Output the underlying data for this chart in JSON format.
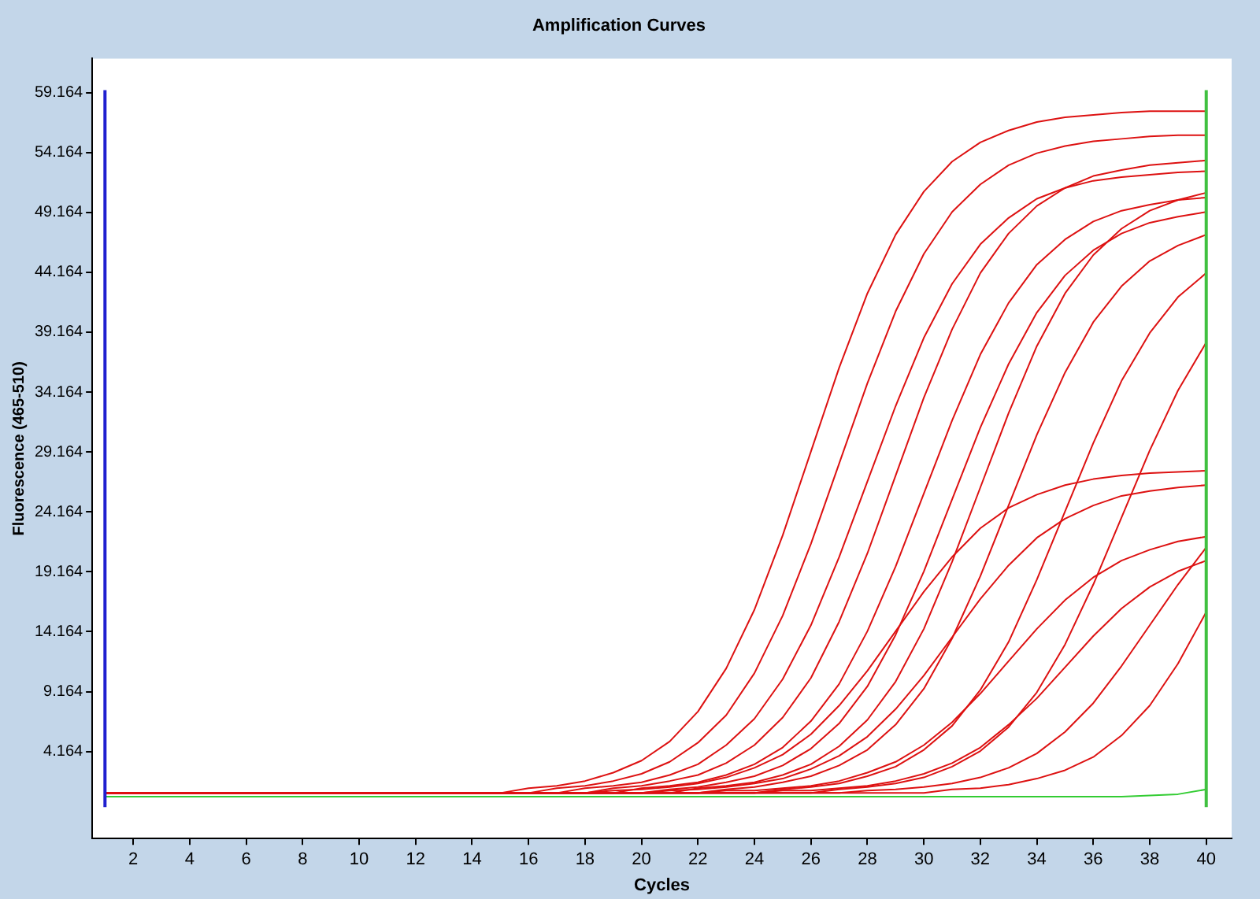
{
  "chart_data": {
    "type": "line",
    "title": "Amplification Curves",
    "xlabel": "Cycles",
    "ylabel": "Fluorescence (465-510)",
    "marker": "none",
    "x": [
      1,
      2,
      3,
      4,
      5,
      6,
      7,
      8,
      9,
      10,
      11,
      12,
      13,
      14,
      15,
      16,
      17,
      18,
      19,
      20,
      21,
      22,
      23,
      24,
      25,
      26,
      27,
      28,
      29,
      30,
      31,
      32,
      33,
      34,
      35,
      36,
      37,
      38,
      39,
      40
    ],
    "xlim": [
      0.55,
      40.9
    ],
    "xticks": [
      2,
      4,
      6,
      8,
      10,
      12,
      14,
      16,
      18,
      20,
      22,
      24,
      26,
      28,
      30,
      32,
      34,
      36,
      38,
      40
    ],
    "ylim": [
      -3.1,
      62
    ],
    "yticks": [
      4.164,
      9.164,
      14.164,
      19.164,
      24.164,
      29.164,
      34.164,
      39.164,
      44.164,
      49.164,
      54.164,
      59.164
    ],
    "ref_lines": [
      {
        "axis": "x",
        "value": 1,
        "color": "#2020d0"
      },
      {
        "axis": "x",
        "value": 40,
        "color": "#40c040"
      }
    ],
    "series": [
      {
        "color": "#dd1111",
        "values": [
          0.7,
          0.7,
          0.7,
          0.7,
          0.7,
          0.7,
          0.7,
          0.7,
          0.7,
          0.7,
          0.7,
          0.7,
          0.7,
          0.7,
          0.7,
          1.1,
          1.3,
          1.7,
          2.4,
          3.4,
          5.0,
          7.5,
          11.1,
          16.0,
          22.2,
          29.2,
          36.2,
          42.4,
          47.3,
          50.9,
          53.4,
          55.0,
          56.0,
          56.7,
          57.1,
          57.3,
          57.5,
          57.6,
          57.6,
          57.6
        ]
      },
      {
        "color": "#dd1111",
        "values": [
          0.7,
          0.7,
          0.7,
          0.7,
          0.7,
          0.7,
          0.7,
          0.7,
          0.7,
          0.7,
          0.7,
          0.7,
          0.7,
          0.7,
          0.7,
          0.7,
          1.1,
          1.3,
          1.7,
          2.3,
          3.3,
          4.9,
          7.2,
          10.7,
          15.5,
          21.5,
          28.2,
          34.9,
          40.9,
          45.7,
          49.2,
          51.5,
          53.1,
          54.1,
          54.7,
          55.1,
          55.3,
          55.5,
          55.6,
          55.6
        ]
      },
      {
        "color": "#dd1111",
        "values": [
          0.7,
          0.7,
          0.7,
          0.7,
          0.7,
          0.7,
          0.7,
          0.7,
          0.7,
          0.7,
          0.7,
          0.7,
          0.7,
          0.7,
          0.7,
          0.7,
          0.7,
          1.1,
          1.3,
          1.6,
          2.2,
          3.1,
          4.7,
          6.9,
          10.2,
          14.7,
          20.4,
          26.7,
          33.0,
          38.7,
          43.2,
          46.5,
          48.7,
          50.3,
          51.2,
          51.8,
          52.1,
          52.3,
          52.5,
          52.6
        ]
      },
      {
        "color": "#dd1111",
        "values": [
          0.7,
          0.7,
          0.7,
          0.7,
          0.7,
          0.7,
          0.7,
          0.7,
          0.7,
          0.7,
          0.7,
          0.7,
          0.7,
          0.7,
          0.7,
          0.7,
          0.7,
          0.7,
          1.1,
          1.3,
          1.7,
          2.2,
          3.2,
          4.7,
          7.0,
          10.3,
          15.0,
          20.7,
          27.2,
          33.7,
          39.4,
          44.1,
          47.4,
          49.7,
          51.2,
          52.2,
          52.7,
          53.1,
          53.3,
          53.5
        ]
      },
      {
        "color": "#dd1111",
        "values": [
          0.7,
          0.7,
          0.7,
          0.7,
          0.7,
          0.7,
          0.7,
          0.7,
          0.7,
          0.7,
          0.7,
          0.7,
          0.7,
          0.7,
          0.7,
          0.7,
          0.7,
          0.7,
          0.7,
          1.1,
          1.3,
          1.6,
          2.2,
          3.1,
          4.5,
          6.7,
          9.8,
          14.2,
          19.6,
          25.7,
          31.8,
          37.3,
          41.6,
          44.8,
          46.9,
          48.4,
          49.3,
          49.8,
          50.2,
          50.4
        ]
      },
      {
        "color": "#dd1111",
        "values": [
          0.7,
          0.7,
          0.7,
          0.7,
          0.7,
          0.7,
          0.7,
          0.7,
          0.7,
          0.7,
          0.7,
          0.7,
          0.7,
          0.7,
          0.7,
          0.7,
          0.7,
          0.7,
          0.7,
          0.7,
          1.0,
          1.2,
          1.6,
          2.1,
          3.0,
          4.4,
          6.5,
          9.6,
          13.9,
          19.2,
          25.2,
          31.2,
          36.5,
          40.8,
          43.9,
          46.0,
          47.4,
          48.3,
          48.8,
          49.2
        ]
      },
      {
        "color": "#dd1111",
        "values": [
          0.7,
          0.7,
          0.7,
          0.7,
          0.7,
          0.7,
          0.7,
          0.7,
          0.7,
          0.7,
          0.7,
          0.7,
          0.7,
          0.7,
          0.7,
          0.7,
          0.7,
          0.7,
          0.7,
          0.7,
          0.7,
          1.1,
          1.3,
          1.6,
          2.2,
          3.1,
          4.6,
          6.8,
          10.0,
          14.4,
          20.0,
          26.2,
          32.4,
          38.0,
          42.4,
          45.6,
          47.8,
          49.3,
          50.2,
          50.8
        ]
      },
      {
        "color": "#dd1111",
        "values": [
          0.7,
          0.7,
          0.7,
          0.7,
          0.7,
          0.7,
          0.7,
          0.7,
          0.7,
          0.7,
          0.7,
          0.7,
          0.7,
          0.7,
          0.7,
          0.7,
          0.7,
          0.7,
          0.7,
          0.7,
          0.7,
          0.7,
          1.0,
          1.2,
          1.6,
          2.1,
          3.0,
          4.3,
          6.4,
          9.4,
          13.6,
          18.8,
          24.7,
          30.6,
          35.8,
          40.0,
          43.0,
          45.1,
          46.4,
          47.3
        ]
      },
      {
        "color": "#dd1111",
        "values": [
          0.7,
          0.7,
          0.7,
          0.7,
          0.7,
          0.7,
          0.7,
          0.7,
          0.7,
          0.7,
          0.7,
          0.7,
          0.7,
          0.7,
          0.7,
          0.7,
          0.7,
          0.7,
          0.7,
          0.7,
          0.7,
          0.7,
          0.7,
          0.7,
          1.0,
          1.2,
          1.5,
          2.1,
          2.9,
          4.3,
          6.3,
          9.3,
          13.3,
          18.5,
          24.2,
          29.9,
          35.1,
          39.1,
          42.1,
          44.1
        ]
      },
      {
        "color": "#dd1111",
        "values": [
          0.7,
          0.7,
          0.7,
          0.7,
          0.7,
          0.7,
          0.7,
          0.7,
          0.7,
          0.7,
          0.7,
          0.7,
          0.7,
          0.7,
          0.7,
          0.7,
          0.7,
          0.7,
          0.7,
          0.7,
          0.7,
          0.7,
          0.7,
          0.7,
          0.7,
          0.7,
          1.0,
          1.2,
          1.5,
          2.0,
          2.9,
          4.2,
          6.2,
          9.1,
          13.1,
          18.1,
          23.7,
          29.3,
          34.3,
          38.3
        ]
      },
      {
        "color": "#dd1111",
        "values": [
          0.7,
          0.7,
          0.7,
          0.7,
          0.7,
          0.7,
          0.7,
          0.7,
          0.7,
          0.7,
          0.7,
          0.7,
          0.7,
          0.7,
          0.7,
          0.7,
          0.7,
          0.7,
          0.9,
          1.0,
          1.2,
          1.5,
          2.0,
          2.8,
          3.9,
          5.6,
          8.0,
          10.9,
          14.2,
          17.5,
          20.4,
          22.8,
          24.5,
          25.6,
          26.4,
          26.9,
          27.2,
          27.4,
          27.5,
          27.6
        ]
      },
      {
        "color": "#dd1111",
        "values": [
          0.7,
          0.7,
          0.7,
          0.7,
          0.7,
          0.7,
          0.7,
          0.7,
          0.7,
          0.7,
          0.7,
          0.7,
          0.7,
          0.7,
          0.7,
          0.7,
          0.7,
          0.7,
          0.7,
          0.7,
          0.9,
          1.0,
          1.2,
          1.5,
          1.9,
          2.7,
          3.8,
          5.4,
          7.7,
          10.5,
          13.7,
          16.9,
          19.7,
          22.0,
          23.6,
          24.7,
          25.5,
          25.9,
          26.2,
          26.4
        ]
      },
      {
        "color": "#dd1111",
        "values": [
          0.7,
          0.7,
          0.7,
          0.7,
          0.7,
          0.7,
          0.7,
          0.7,
          0.7,
          0.7,
          0.7,
          0.7,
          0.7,
          0.7,
          0.7,
          0.7,
          0.7,
          0.7,
          0.7,
          0.7,
          0.7,
          0.7,
          0.9,
          0.9,
          1.1,
          1.3,
          1.7,
          2.4,
          3.3,
          4.7,
          6.6,
          9.0,
          11.7,
          14.4,
          16.8,
          18.7,
          20.1,
          21.0,
          21.7,
          22.1
        ]
      },
      {
        "color": "#dd1111",
        "values": [
          0.7,
          0.7,
          0.7,
          0.7,
          0.7,
          0.7,
          0.7,
          0.7,
          0.7,
          0.7,
          0.7,
          0.7,
          0.7,
          0.7,
          0.7,
          0.7,
          0.7,
          0.7,
          0.7,
          0.7,
          0.7,
          0.7,
          0.7,
          0.7,
          0.9,
          0.9,
          1.1,
          1.3,
          1.7,
          2.3,
          3.2,
          4.5,
          6.4,
          8.6,
          11.2,
          13.8,
          16.1,
          17.9,
          19.2,
          20.1
        ]
      },
      {
        "color": "#dd1111",
        "values": [
          0.7,
          0.7,
          0.7,
          0.7,
          0.7,
          0.7,
          0.7,
          0.7,
          0.7,
          0.7,
          0.7,
          0.7,
          0.7,
          0.7,
          0.7,
          0.7,
          0.7,
          0.7,
          0.7,
          0.7,
          0.7,
          0.7,
          0.7,
          0.7,
          0.7,
          0.7,
          0.7,
          0.9,
          1.0,
          1.2,
          1.5,
          2.0,
          2.8,
          4.0,
          5.8,
          8.2,
          11.3,
          14.7,
          18.1,
          21.2
        ]
      },
      {
        "color": "#dd1111",
        "values": [
          0.7,
          0.7,
          0.7,
          0.7,
          0.7,
          0.7,
          0.7,
          0.7,
          0.7,
          0.7,
          0.7,
          0.7,
          0.7,
          0.7,
          0.7,
          0.7,
          0.7,
          0.7,
          0.7,
          0.7,
          0.7,
          0.7,
          0.7,
          0.7,
          0.7,
          0.7,
          0.7,
          0.7,
          0.7,
          0.7,
          1.0,
          1.1,
          1.4,
          1.9,
          2.6,
          3.7,
          5.5,
          8.0,
          11.5,
          15.8
        ]
      },
      {
        "color": "#33cc33",
        "values": [
          0.4,
          0.4,
          0.4,
          0.4,
          0.4,
          0.4,
          0.4,
          0.4,
          0.4,
          0.4,
          0.4,
          0.4,
          0.4,
          0.4,
          0.4,
          0.4,
          0.4,
          0.4,
          0.4,
          0.4,
          0.4,
          0.4,
          0.4,
          0.4,
          0.4,
          0.4,
          0.4,
          0.4,
          0.4,
          0.4,
          0.4,
          0.4,
          0.4,
          0.4,
          0.4,
          0.4,
          0.4,
          0.5,
          0.6,
          1.0
        ]
      }
    ]
  }
}
